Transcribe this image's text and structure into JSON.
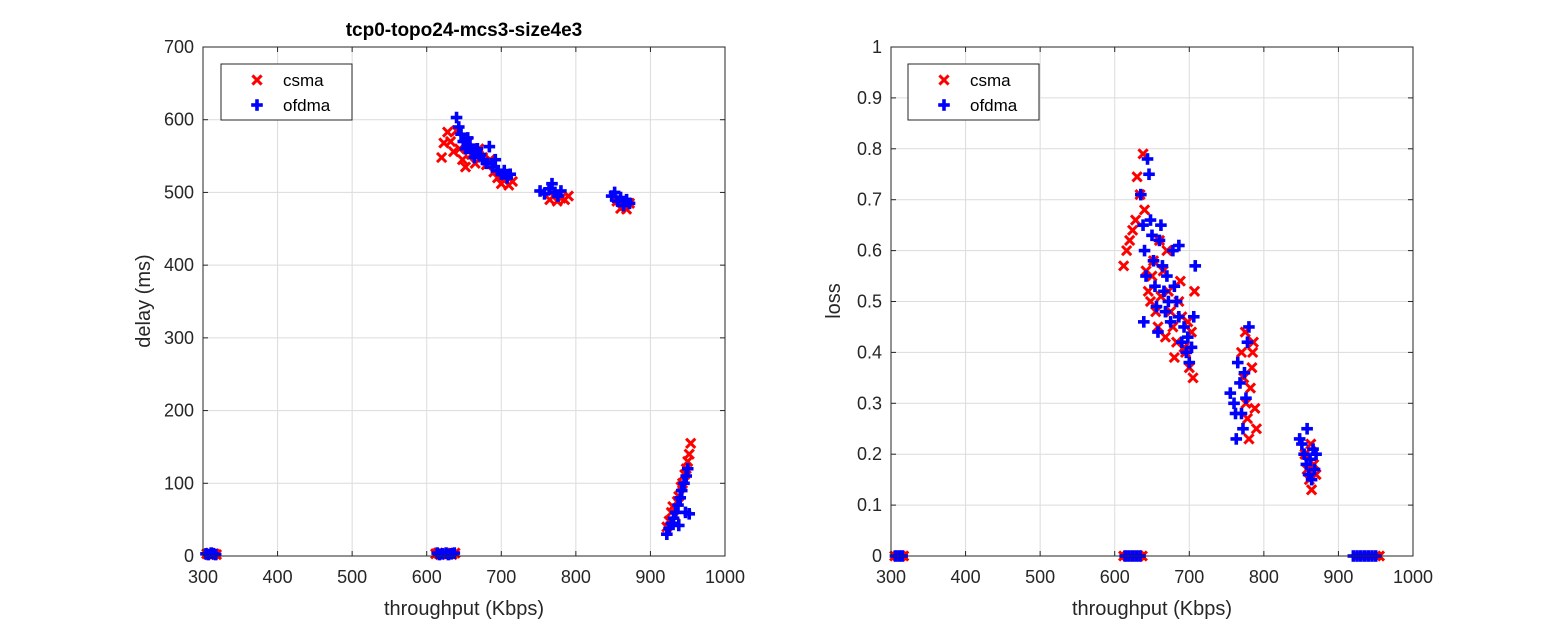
{
  "colors": {
    "csma": "#ff0000",
    "ofdma": "#0000ff",
    "grid": "#dcdcdc",
    "axis": "#262626"
  },
  "chart_data": [
    {
      "type": "scatter",
      "title": "tcp0-topo24-mcs3-size4e3",
      "xlabel": "throughput (Kbps)",
      "ylabel": "delay (ms)",
      "xlim": [
        300,
        1000
      ],
      "ylim": [
        0,
        700
      ],
      "xticks": [
        "300",
        "400",
        "500",
        "600",
        "700",
        "800",
        "900",
        "1000"
      ],
      "yticks": [
        "0",
        "100",
        "200",
        "300",
        "400",
        "500",
        "600",
        "700"
      ],
      "grid": true,
      "legend_position": "top-left",
      "series": [
        {
          "name": "csma",
          "marker": "x",
          "points": [
            [
              305,
              3
            ],
            [
              308,
              2
            ],
            [
              310,
              4
            ],
            [
              312,
              2
            ],
            [
              315,
              3
            ],
            [
              318,
              2
            ],
            [
              612,
              3
            ],
            [
              615,
              4
            ],
            [
              618,
              2
            ],
            [
              622,
              3
            ],
            [
              625,
              4
            ],
            [
              630,
              3
            ],
            [
              634,
              2
            ],
            [
              638,
              4
            ],
            [
              620,
              548
            ],
            [
              623,
              568
            ],
            [
              628,
              583
            ],
            [
              632,
              570
            ],
            [
              636,
              556
            ],
            [
              640,
              585
            ],
            [
              644,
              560
            ],
            [
              648,
              545
            ],
            [
              652,
              535
            ],
            [
              656,
              570
            ],
            [
              660,
              552
            ],
            [
              665,
              540
            ],
            [
              670,
              560
            ],
            [
              675,
              548
            ],
            [
              680,
              538
            ],
            [
              685,
              545
            ],
            [
              690,
              528
            ],
            [
              695,
              520
            ],
            [
              700,
              512
            ],
            [
              705,
              522
            ],
            [
              710,
              510
            ],
            [
              715,
              515
            ],
            [
              765,
              490
            ],
            [
              770,
              495
            ],
            [
              775,
              488
            ],
            [
              780,
              492
            ],
            [
              785,
              490
            ],
            [
              790,
              495
            ],
            [
              855,
              488
            ],
            [
              860,
              478
            ],
            [
              865,
              482
            ],
            [
              868,
              477
            ],
            [
              872,
              485
            ],
            [
              922,
              40
            ],
            [
              925,
              48
            ],
            [
              928,
              60
            ],
            [
              930,
              68
            ],
            [
              933,
              55
            ],
            [
              936,
              75
            ],
            [
              938,
              82
            ],
            [
              941,
              95
            ],
            [
              943,
              100
            ],
            [
              946,
              112
            ],
            [
              948,
              120
            ],
            [
              950,
              130
            ],
            [
              952,
              140
            ],
            [
              954,
              155
            ]
          ]
        },
        {
          "name": "ofdma",
          "marker": "+",
          "points": [
            [
              304,
              3
            ],
            [
              307,
              2
            ],
            [
              311,
              4
            ],
            [
              314,
              3
            ],
            [
              317,
              2
            ],
            [
              614,
              4
            ],
            [
              617,
              2
            ],
            [
              621,
              3
            ],
            [
              626,
              4
            ],
            [
              629,
              2
            ],
            [
              633,
              3
            ],
            [
              637,
              4
            ],
            [
              640,
              603
            ],
            [
              643,
              590
            ],
            [
              646,
              580
            ],
            [
              649,
              570
            ],
            [
              652,
              560
            ],
            [
              655,
              575
            ],
            [
              658,
              565
            ],
            [
              661,
              555
            ],
            [
              664,
              548
            ],
            [
              668,
              560
            ],
            [
              672,
              552
            ],
            [
              676,
              545
            ],
            [
              680,
              540
            ],
            [
              684,
              563
            ],
            [
              688,
              535
            ],
            [
              692,
              545
            ],
            [
              696,
              530
            ],
            [
              700,
              525
            ],
            [
              704,
              530
            ],
            [
              708,
              520
            ],
            [
              712,
              525
            ],
            [
              752,
              502
            ],
            [
              758,
              498
            ],
            [
              764,
              505
            ],
            [
              768,
              512
            ],
            [
              772,
              500
            ],
            [
              776,
              495
            ],
            [
              780,
              502
            ],
            [
              848,
              495
            ],
            [
              852,
              500
            ],
            [
              856,
              488
            ],
            [
              860,
              493
            ],
            [
              864,
              482
            ],
            [
              868,
              490
            ],
            [
              872,
              485
            ],
            [
              922,
              30
            ],
            [
              925,
              38
            ],
            [
              928,
              45
            ],
            [
              931,
              52
            ],
            [
              934,
              60
            ],
            [
              937,
              70
            ],
            [
              940,
              80
            ],
            [
              942,
              90
            ],
            [
              945,
              100
            ],
            [
              948,
              110
            ],
            [
              950,
              120
            ],
            [
              947,
              60
            ],
            [
              938,
              42
            ],
            [
              952,
              58
            ]
          ]
        }
      ]
    },
    {
      "type": "scatter",
      "title": "",
      "xlabel": "throughput (Kbps)",
      "ylabel": "loss",
      "xlim": [
        300,
        1000
      ],
      "ylim": [
        0,
        1
      ],
      "xticks": [
        "300",
        "400",
        "500",
        "600",
        "700",
        "800",
        "900",
        "1000"
      ],
      "yticks": [
        "0",
        "0.1",
        "0.2",
        "0.3",
        "0.4",
        "0.5",
        "0.6",
        "0.7",
        "0.8",
        "0.9",
        "1"
      ],
      "grid": true,
      "legend_position": "top-left",
      "series": [
        {
          "name": "csma",
          "marker": "x",
          "points": [
            [
              305,
              0
            ],
            [
              309,
              0
            ],
            [
              313,
              0
            ],
            [
              317,
              0
            ],
            [
              612,
              0
            ],
            [
              617,
              0
            ],
            [
              622,
              0
            ],
            [
              627,
              0
            ],
            [
              632,
              0
            ],
            [
              637,
              0
            ],
            [
              612,
              0.57
            ],
            [
              616,
              0.6
            ],
            [
              620,
              0.62
            ],
            [
              624,
              0.64
            ],
            [
              628,
              0.66
            ],
            [
              630,
              0.745
            ],
            [
              634,
              0.71
            ],
            [
              638,
              0.79
            ],
            [
              640,
              0.68
            ],
            [
              642,
              0.56
            ],
            [
              645,
              0.52
            ],
            [
              648,
              0.5
            ],
            [
              650,
              0.55
            ],
            [
              652,
              0.58
            ],
            [
              655,
              0.48
            ],
            [
              658,
              0.45
            ],
            [
              660,
              0.62
            ],
            [
              662,
              0.51
            ],
            [
              665,
              0.56
            ],
            [
              668,
              0.43
            ],
            [
              670,
              0.6
            ],
            [
              672,
              0.52
            ],
            [
              675,
              0.48
            ],
            [
              678,
              0.45
            ],
            [
              680,
              0.39
            ],
            [
              683,
              0.42
            ],
            [
              686,
              0.5
            ],
            [
              688,
              0.54
            ],
            [
              690,
              0.47
            ],
            [
              693,
              0.41
            ],
            [
              695,
              0.4
            ],
            [
              698,
              0.46
            ],
            [
              700,
              0.37
            ],
            [
              703,
              0.44
            ],
            [
              705,
              0.35
            ],
            [
              707,
              0.52
            ],
            [
              770,
              0.4
            ],
            [
              773,
              0.35
            ],
            [
              776,
              0.3
            ],
            [
              778,
              0.27
            ],
            [
              780,
              0.23
            ],
            [
              782,
              0.33
            ],
            [
              784,
              0.37
            ],
            [
              786,
              0.42
            ],
            [
              788,
              0.29
            ],
            [
              790,
              0.25
            ],
            [
              775,
              0.44
            ],
            [
              785,
              0.4
            ],
            [
              855,
              0.2
            ],
            [
              858,
              0.17
            ],
            [
              861,
              0.15
            ],
            [
              864,
              0.13
            ],
            [
              867,
              0.18
            ],
            [
              870,
              0.16
            ],
            [
              863,
              0.22
            ],
            [
              925,
              0
            ],
            [
              930,
              0
            ],
            [
              935,
              0
            ],
            [
              940,
              0
            ],
            [
              945,
              0
            ],
            [
              950,
              0
            ],
            [
              955,
              0
            ]
          ]
        },
        {
          "name": "ofdma",
          "marker": "+",
          "points": [
            [
              306,
              0
            ],
            [
              311,
              0
            ],
            [
              315,
              0
            ],
            [
              614,
              0
            ],
            [
              619,
              0
            ],
            [
              624,
              0
            ],
            [
              629,
              0
            ],
            [
              634,
              0
            ],
            [
              635,
              0.71
            ],
            [
              638,
              0.65
            ],
            [
              640,
              0.6
            ],
            [
              642,
              0.55
            ],
            [
              644,
              0.78
            ],
            [
              646,
              0.75
            ],
            [
              648,
              0.66
            ],
            [
              650,
              0.63
            ],
            [
              652,
              0.58
            ],
            [
              654,
              0.53
            ],
            [
              656,
              0.49
            ],
            [
              658,
              0.44
            ],
            [
              660,
              0.62
            ],
            [
              662,
              0.65
            ],
            [
              664,
              0.57
            ],
            [
              666,
              0.52
            ],
            [
              668,
              0.48
            ],
            [
              670,
              0.55
            ],
            [
              672,
              0.5
            ],
            [
              675,
              0.46
            ],
            [
              678,
              0.6
            ],
            [
              680,
              0.53
            ],
            [
              683,
              0.5
            ],
            [
              686,
              0.47
            ],
            [
              690,
              0.42
            ],
            [
              693,
              0.45
            ],
            [
              696,
              0.4
            ],
            [
              698,
              0.43
            ],
            [
              700,
              0.38
            ],
            [
              703,
              0.41
            ],
            [
              706,
              0.47
            ],
            [
              708,
              0.57
            ],
            [
              639,
              0.46
            ],
            [
              686,
              0.61
            ],
            [
              755,
              0.32
            ],
            [
              760,
              0.3
            ],
            [
              763,
              0.23
            ],
            [
              765,
              0.38
            ],
            [
              768,
              0.34
            ],
            [
              770,
              0.28
            ],
            [
              772,
              0.25
            ],
            [
              774,
              0.36
            ],
            [
              776,
              0.31
            ],
            [
              778,
              0.42
            ],
            [
              780,
              0.45
            ],
            [
              762,
              0.28
            ],
            [
              848,
              0.23
            ],
            [
              851,
              0.22
            ],
            [
              854,
              0.2
            ],
            [
              857,
              0.18
            ],
            [
              860,
              0.16
            ],
            [
              862,
              0.19
            ],
            [
              864,
              0.15
            ],
            [
              866,
              0.21
            ],
            [
              868,
              0.17
            ],
            [
              870,
              0.2
            ],
            [
              858,
              0.25
            ],
            [
              920,
              0
            ],
            [
              925,
              0
            ],
            [
              930,
              0
            ],
            [
              935,
              0
            ],
            [
              940,
              0
            ],
            [
              945,
              0
            ],
            [
              950,
              0
            ]
          ]
        }
      ]
    }
  ]
}
